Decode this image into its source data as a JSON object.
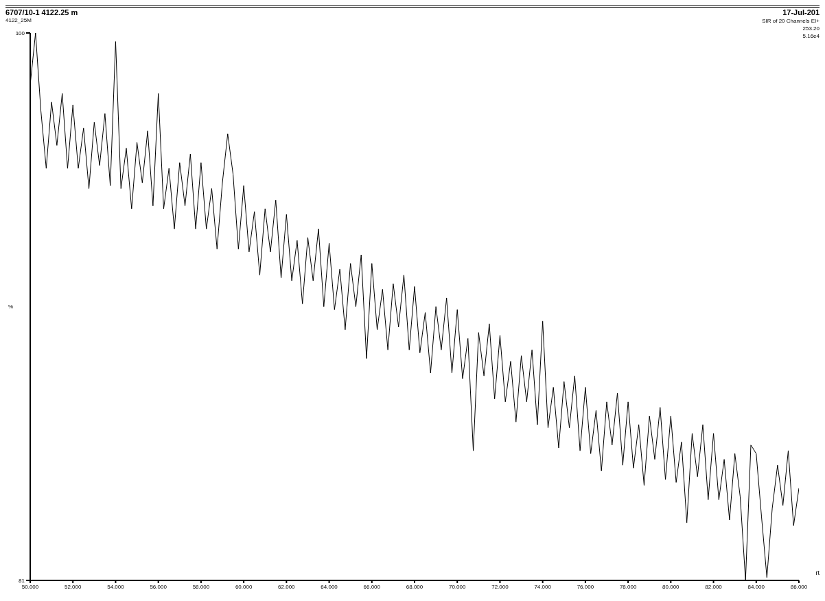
{
  "chart_data": {
    "type": "line",
    "title": "6707/10-1 4122.25 m",
    "subtitle": "4122_25M",
    "xlabel": "rt",
    "ylabel": "%",
    "annotations": [
      "17-Jul-201",
      "SIR of 20 Channels EI+",
      "253.20",
      "5.16e4"
    ],
    "x": [
      50.0,
      50.25,
      50.5,
      50.75,
      51.0,
      51.25,
      51.5,
      51.75,
      52.0,
      52.25,
      52.5,
      52.75,
      53.0,
      53.25,
      53.5,
      53.75,
      54.0,
      54.25,
      54.5,
      54.75,
      55.0,
      55.25,
      55.5,
      55.75,
      56.0,
      56.25,
      56.5,
      56.75,
      57.0,
      57.25,
      57.5,
      57.75,
      58.0,
      58.25,
      58.5,
      58.75,
      59.0,
      59.25,
      59.5,
      59.75,
      60.0,
      60.25,
      60.5,
      60.75,
      61.0,
      61.25,
      61.5,
      61.75,
      62.0,
      62.25,
      62.5,
      62.75,
      63.0,
      63.25,
      63.5,
      63.75,
      64.0,
      64.25,
      64.5,
      64.75,
      65.0,
      65.25,
      65.5,
      65.75,
      66.0,
      66.25,
      66.5,
      66.75,
      67.0,
      67.25,
      67.5,
      67.75,
      68.0,
      68.25,
      68.5,
      68.75,
      69.0,
      69.25,
      69.5,
      69.75,
      70.0,
      70.25,
      70.5,
      70.75,
      71.0,
      71.25,
      71.5,
      71.75,
      72.0,
      72.25,
      72.5,
      72.75,
      73.0,
      73.25,
      73.5,
      73.75,
      74.0,
      74.25,
      74.5,
      74.75,
      75.0,
      75.25,
      75.5,
      75.75,
      76.0,
      76.25,
      76.5,
      76.75,
      77.0,
      77.25,
      77.5,
      77.75,
      78.0,
      78.25,
      78.5,
      78.75,
      79.0,
      79.25,
      79.5,
      79.75,
      80.0,
      80.25,
      80.5,
      80.75,
      81.0,
      81.25,
      81.5,
      81.75,
      82.0,
      82.25,
      82.5,
      82.75,
      83.0,
      83.25,
      83.5,
      83.75,
      84.0,
      84.25,
      84.5,
      84.75,
      85.0,
      85.25,
      85.5,
      85.75,
      86.0
    ],
    "series": [
      {
        "color": "#000000",
        "values": [
          98.2,
          100.0,
          97.3,
          95.3,
          97.6,
          96.1,
          97.9,
          95.3,
          97.5,
          95.3,
          96.7,
          94.6,
          96.9,
          95.4,
          97.2,
          94.7,
          99.7,
          94.6,
          96.0,
          93.9,
          96.2,
          94.8,
          96.6,
          94.0,
          97.9,
          93.9,
          95.3,
          93.2,
          95.5,
          94.0,
          95.8,
          93.2,
          95.5,
          93.2,
          94.6,
          92.5,
          94.8,
          96.5,
          95.1,
          92.5,
          94.7,
          92.4,
          93.8,
          91.6,
          93.9,
          92.4,
          94.2,
          91.5,
          93.7,
          91.4,
          92.8,
          90.6,
          92.9,
          91.4,
          93.2,
          90.5,
          92.7,
          90.4,
          91.8,
          89.7,
          92.0,
          90.5,
          92.3,
          88.7,
          92.0,
          89.7,
          91.1,
          89.0,
          91.3,
          89.8,
          91.6,
          89.0,
          91.2,
          88.9,
          90.3,
          88.2,
          90.5,
          89.0,
          90.8,
          88.2,
          90.4,
          88.0,
          89.4,
          85.5,
          89.6,
          88.1,
          89.9,
          87.3,
          89.5,
          87.2,
          88.6,
          86.5,
          88.8,
          87.2,
          89.0,
          86.4,
          90.0,
          86.3,
          87.7,
          85.6,
          87.9,
          86.3,
          88.1,
          85.5,
          87.7,
          85.4,
          86.9,
          84.8,
          87.2,
          85.7,
          87.5,
          85.0,
          87.2,
          84.9,
          86.4,
          84.3,
          86.7,
          85.2,
          87.0,
          84.5,
          86.7,
          84.4,
          85.8,
          83.0,
          86.1,
          84.6,
          86.4,
          83.8,
          86.1,
          83.8,
          85.2,
          83.1,
          85.4,
          83.9,
          81.0,
          85.7,
          85.4,
          83.2,
          81.1,
          83.5,
          85.0,
          83.6,
          85.5,
          82.9,
          84.2
        ]
      }
    ],
    "xlim": [
      50,
      86
    ],
    "ylim": [
      81,
      100
    ],
    "xticks": [
      {
        "value": 50,
        "label": "50.000"
      },
      {
        "value": 52,
        "label": "52.000"
      },
      {
        "value": 54,
        "label": "54.000"
      },
      {
        "value": 56,
        "label": "56.000"
      },
      {
        "value": 58,
        "label": "58.000"
      },
      {
        "value": 60,
        "label": "60.000"
      },
      {
        "value": 62,
        "label": "62.000"
      },
      {
        "value": 64,
        "label": "64.000"
      },
      {
        "value": 66,
        "label": "66.000"
      },
      {
        "value": 68,
        "label": "68.000"
      },
      {
        "value": 70,
        "label": "70.000"
      },
      {
        "value": 72,
        "label": "72.000"
      },
      {
        "value": 74,
        "label": "74.000"
      },
      {
        "value": 76,
        "label": "76.000"
      },
      {
        "value": 78,
        "label": "78.000"
      },
      {
        "value": 80,
        "label": "80.000"
      },
      {
        "value": 82,
        "label": "82.000"
      },
      {
        "value": 84,
        "label": "84.000"
      },
      {
        "value": 86,
        "label": "86.000"
      }
    ],
    "yticks": [
      81,
      100
    ]
  }
}
